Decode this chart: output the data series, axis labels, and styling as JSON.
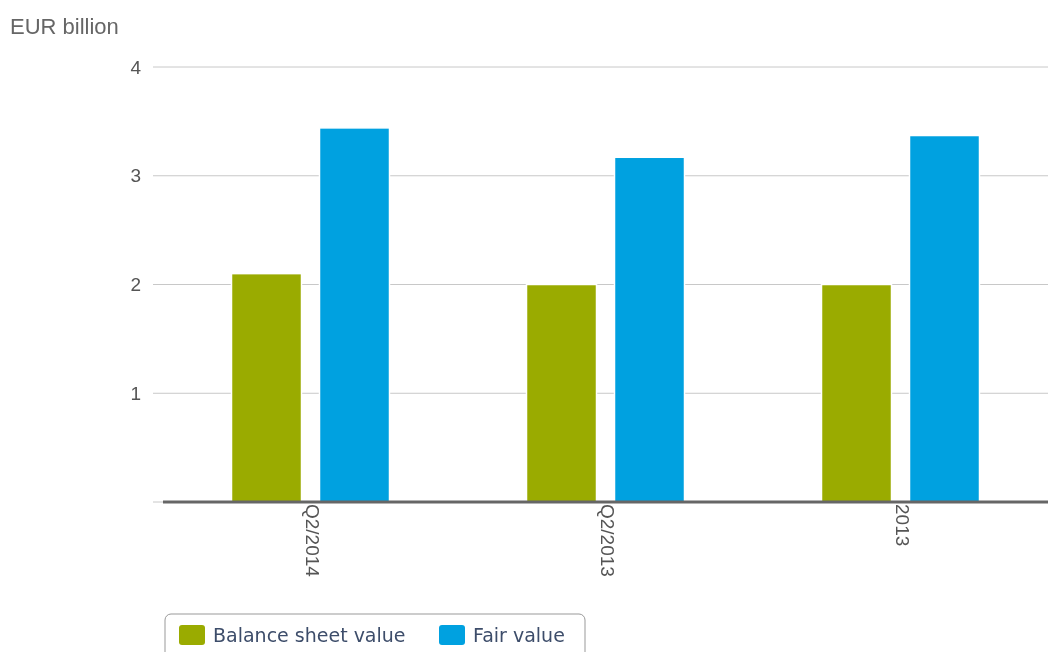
{
  "chart_data": {
    "type": "bar",
    "ylabel": "EUR billion",
    "categories": [
      "Q2/2014",
      "Q2/2013",
      "2013"
    ],
    "series": [
      {
        "name": "Balance sheet value",
        "color": "#9aab00",
        "values": [
          2.1,
          2.0,
          2.0
        ]
      },
      {
        "name": "Fair value",
        "color": "#00a1e0",
        "values": [
          3.44,
          3.17,
          3.37
        ]
      }
    ],
    "ylim": [
      0,
      4
    ],
    "yticks": [
      {
        "value": 0,
        "label": null
      },
      1,
      2,
      3,
      4
    ],
    "grid": "y",
    "legend": "bottom"
  }
}
